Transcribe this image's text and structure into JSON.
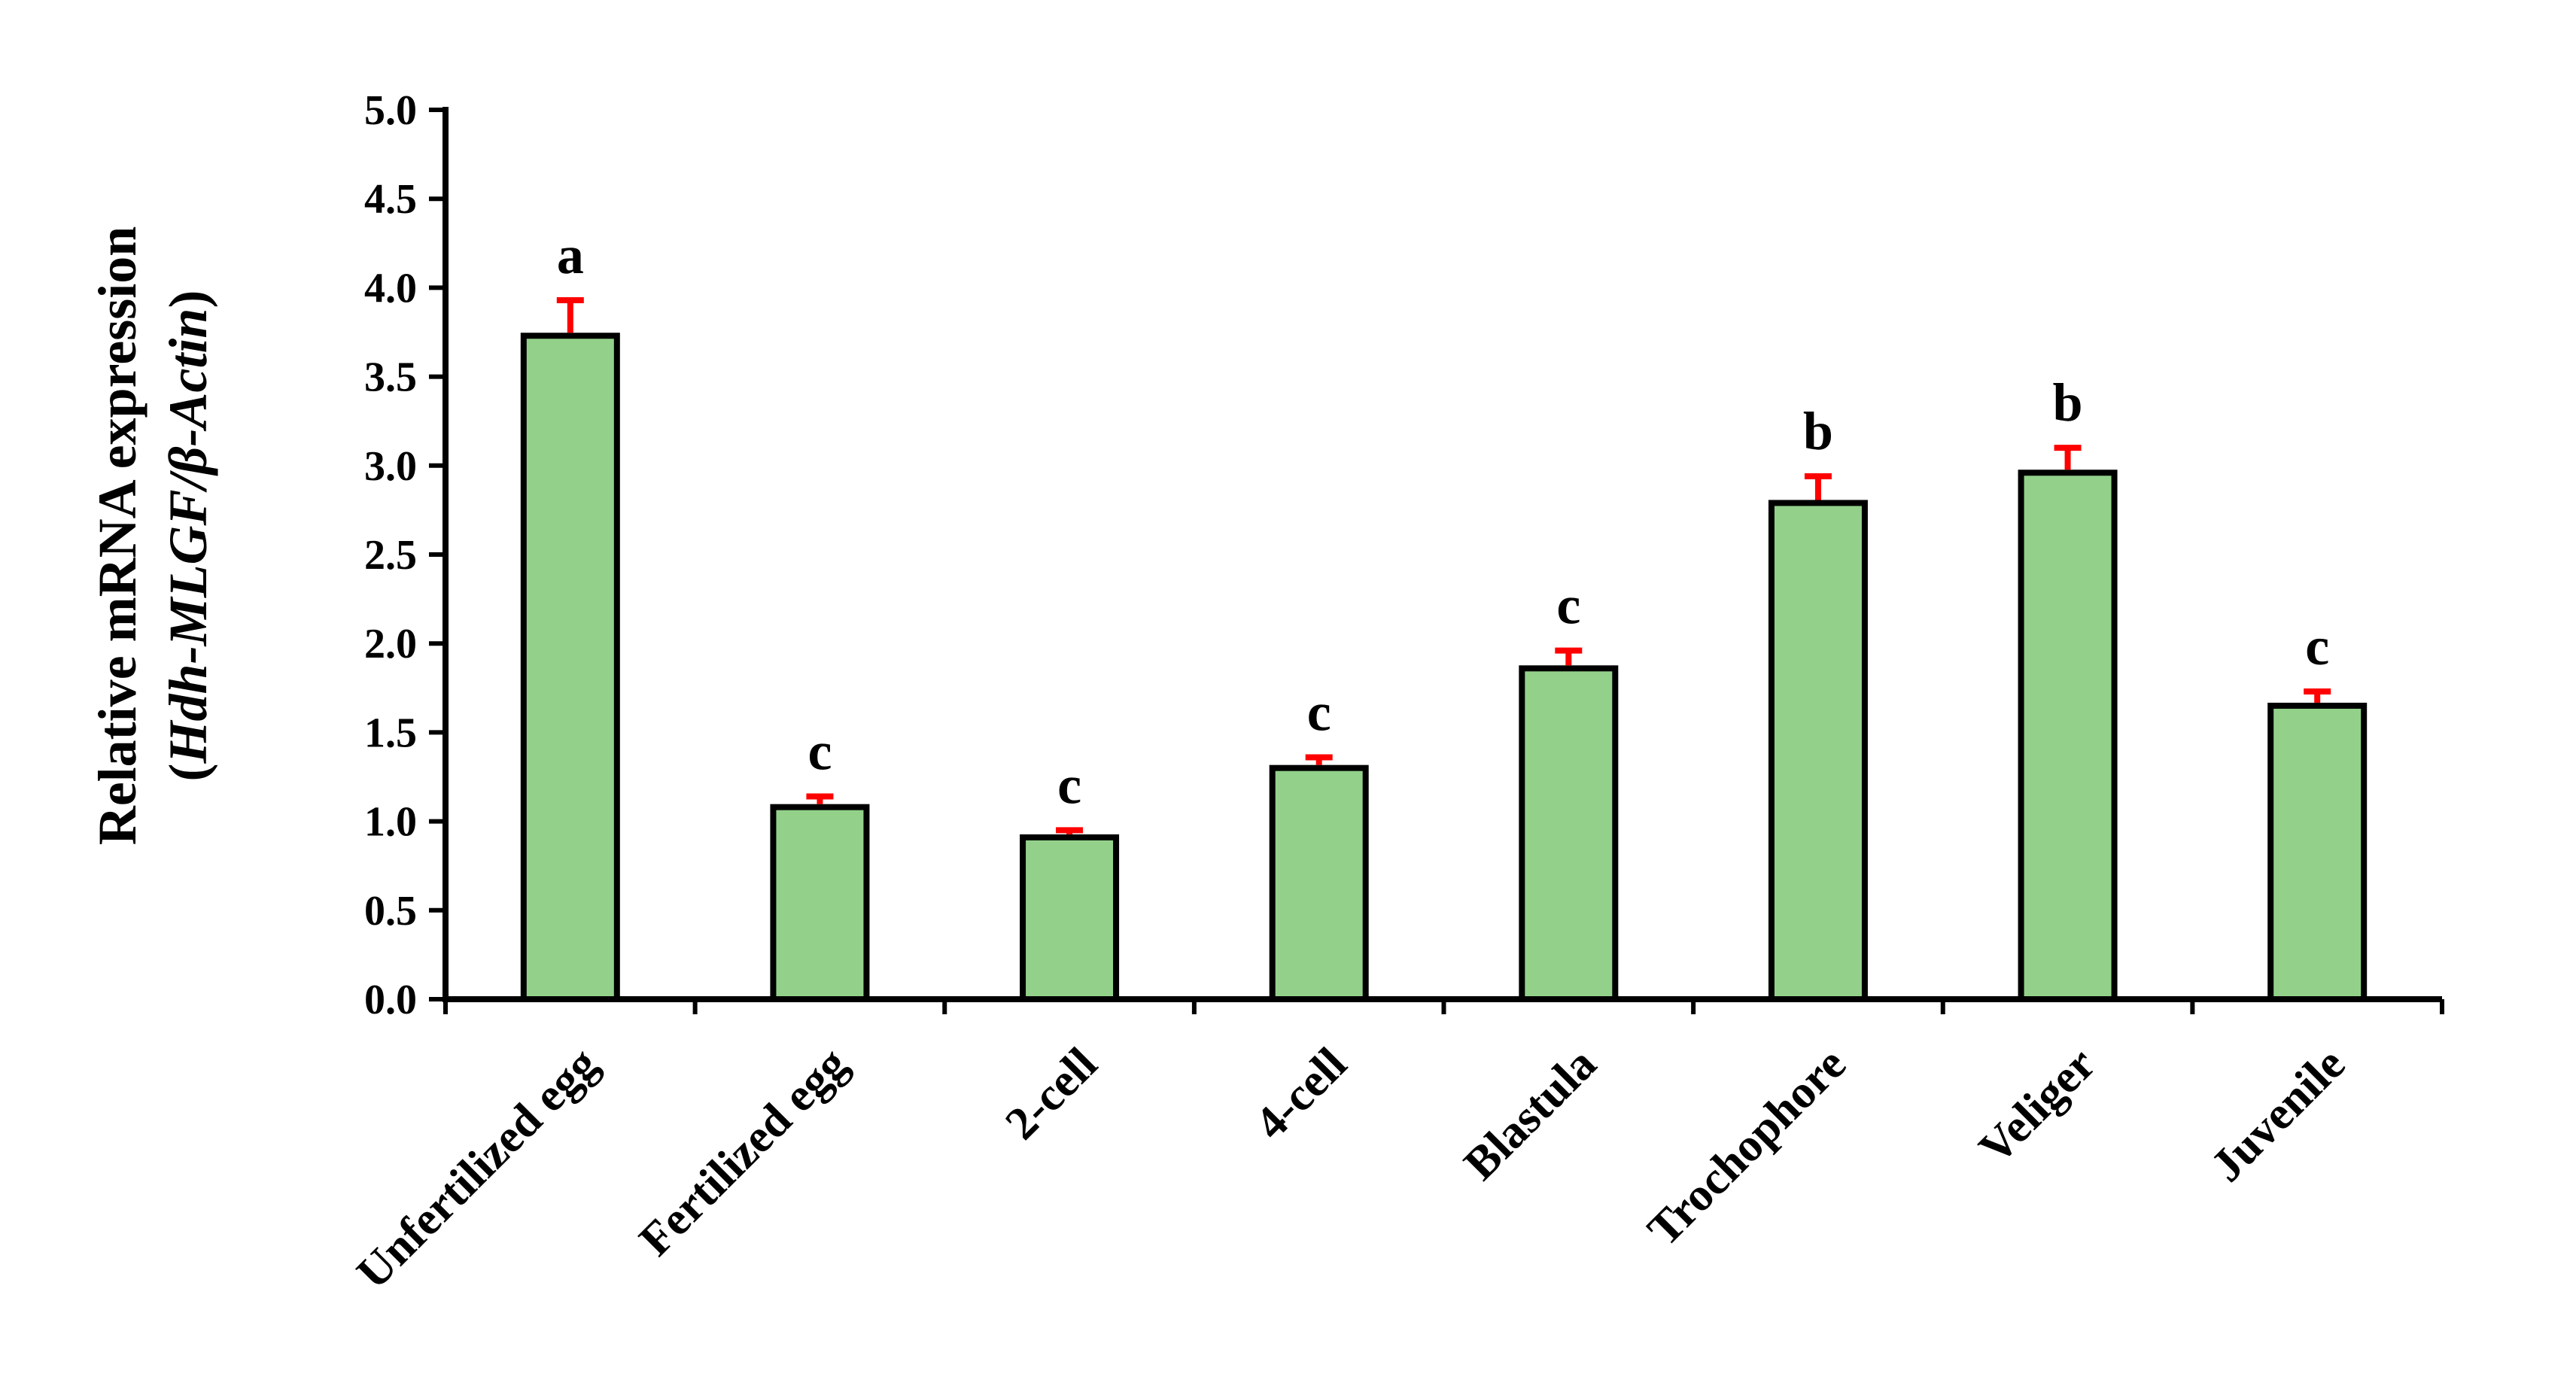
{
  "chart_data": {
    "type": "bar",
    "categories": [
      "Unfertilized egg",
      "Fertilized egg",
      "2-cell",
      "4-cell",
      "Blastula",
      "Trochophore",
      "Veliger",
      "Juvenile"
    ],
    "series": [
      {
        "values": [
          3.73,
          1.08,
          0.91,
          1.3,
          1.86,
          2.79,
          2.96,
          1.65
        ],
        "error": [
          0.2,
          0.06,
          0.04,
          0.06,
          0.1,
          0.15,
          0.14,
          0.08
        ]
      }
    ],
    "significance_labels": [
      "a",
      "c",
      "c",
      "c",
      "c",
      "b",
      "b",
      "c"
    ],
    "ylabel_line1": "Relative mRNA expression",
    "ylabel_line2_prefix": "(",
    "ylabel_line2_gene": "Hdh-MLGF/β-Actin",
    "ylabel_line2_suffix": ")",
    "xlabel": "",
    "ylim": [
      0,
      5.0
    ],
    "y_ticks": [
      "0.0",
      "0.5",
      "1.0",
      "1.5",
      "2.0",
      "2.5",
      "3.0",
      "3.5",
      "4.0",
      "4.5",
      "5.0"
    ],
    "grid": false,
    "colors": {
      "bar_fill": "#93d18a",
      "bar_stroke": "#000000",
      "error_bar": "#ff0000",
      "axis": "#000000"
    }
  }
}
